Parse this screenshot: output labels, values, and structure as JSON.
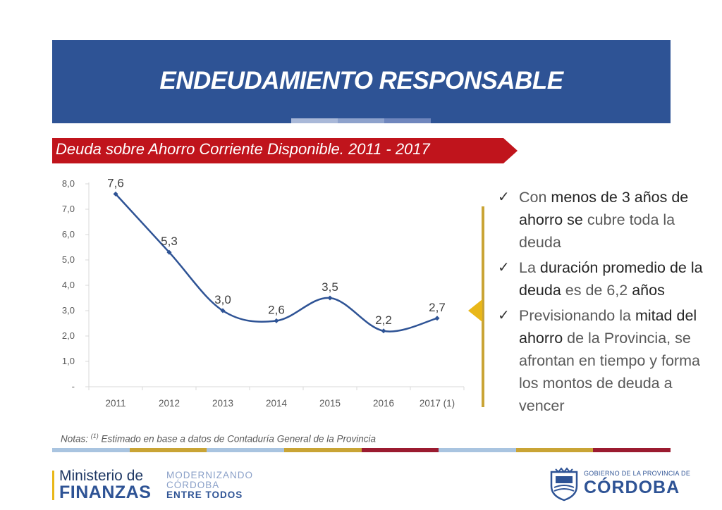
{
  "header": {
    "title": "ENDEUDAMIENTO RESPONSABLE",
    "banner_color": "#2e5395",
    "tab_colors": [
      "#a9b8d8",
      "#8ea2cc",
      "#6f86bd"
    ]
  },
  "subtitle": {
    "text": "Deuda sobre Ahorro Corriente Disponible. 2011 - 2017",
    "color": "#c0141c"
  },
  "chart_data": {
    "type": "line",
    "categories": [
      "2011",
      "2012",
      "2013",
      "2014",
      "2015",
      "2016",
      "2017 (1)"
    ],
    "series": [
      {
        "values": [
          7.6,
          5.3,
          3.0,
          2.6,
          3.5,
          2.2,
          2.7
        ],
        "color": "#2e5395"
      }
    ],
    "data_labels": [
      "7,6",
      "5,3",
      "3,0",
      "2,6",
      "3,5",
      "2,2",
      "2,7"
    ],
    "y_ticks": [
      0,
      1,
      2,
      3,
      4,
      5,
      6,
      7,
      8
    ],
    "y_tick_labels": [
      "-",
      "1,0",
      "2,0",
      "3,0",
      "4,0",
      "5,0",
      "6,0",
      "7,0",
      "8,0"
    ],
    "ylim": [
      0,
      8
    ],
    "smooth": true,
    "grid": false,
    "legend": "none"
  },
  "bullets": [
    {
      "parts": [
        {
          "t": "Con ",
          "b": false
        },
        {
          "t": "menos de 3 años de ahorro se",
          "b": true
        },
        {
          "t": " cubre toda la deuda",
          "b": false
        }
      ]
    },
    {
      "parts": [
        {
          "t": "La ",
          "b": false
        },
        {
          "t": "duración promedio de la deuda",
          "b": true
        },
        {
          "t": " es de 6,2 ",
          "b": false
        },
        {
          "t": "años",
          "b": true
        }
      ]
    },
    {
      "parts": [
        {
          "t": "Previsionando la ",
          "b": false
        },
        {
          "t": "mitad del ahorro",
          "b": true
        },
        {
          "t": " de la Provincia, se afrontan en tiempo y forma los montos de deuda a vencer",
          "b": false
        }
      ]
    }
  ],
  "note": {
    "prefix": "Notas: ",
    "sup": "(1)",
    "text": " Estimado en base a datos de Contaduría General de la Provincia"
  },
  "footer": {
    "stripe_colors": [
      "#a9c4e0",
      "#c9a435",
      "#a9c4e0",
      "#c9a435",
      "#9b1b30",
      "#a9c4e0",
      "#c9a435",
      "#9b1b30"
    ],
    "ministry_line1": "Ministerio de",
    "ministry_line2": "FINANZAS",
    "slogan": [
      "MODERNIZANDO",
      "CÓRDOBA",
      "ENTRE TODOS"
    ],
    "gov_line1": "GOBIERNO DE LA PROVINCIA DE",
    "gov_line2": "CÓRDOBA"
  }
}
